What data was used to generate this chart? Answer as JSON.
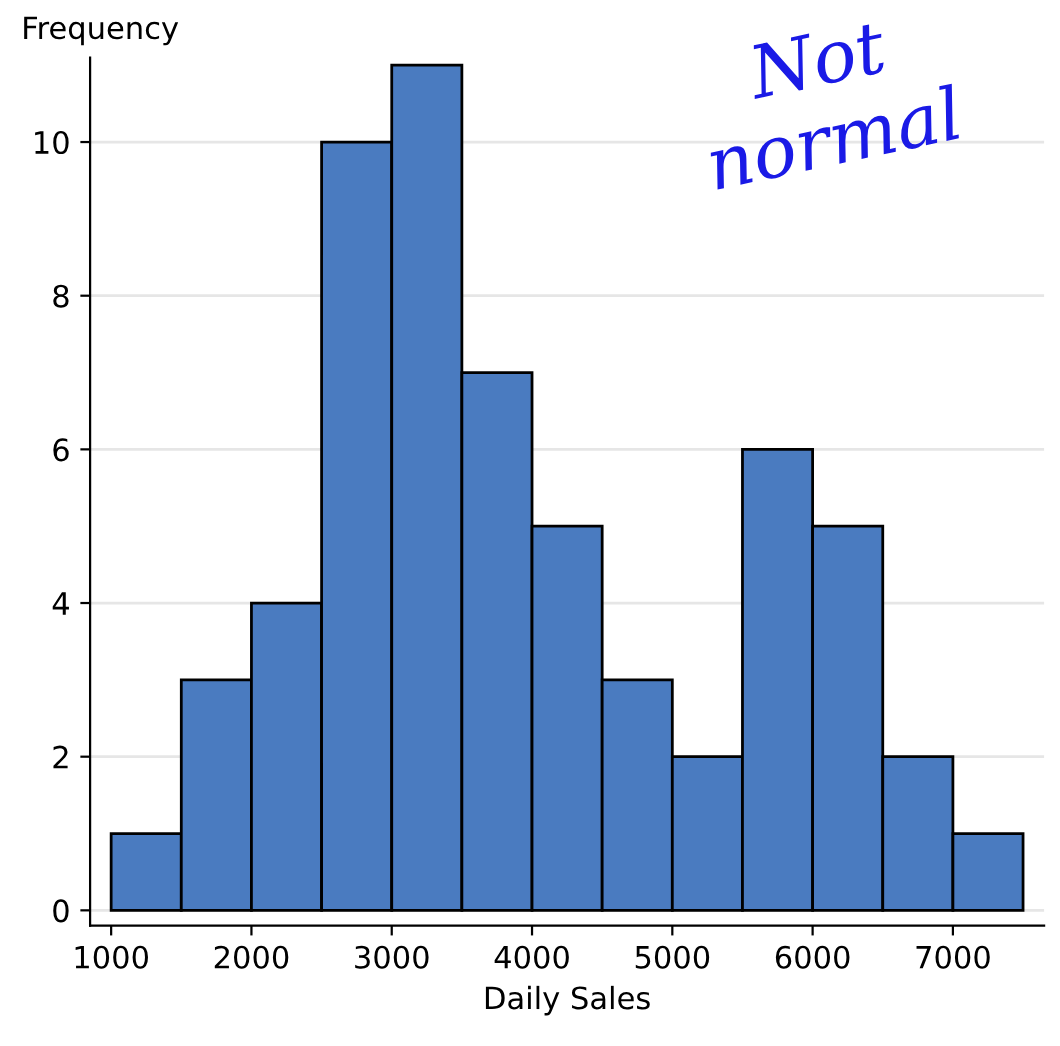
{
  "chart_data": {
    "type": "histogram",
    "xlabel": "Daily Sales",
    "ylabel": "Frequency",
    "bins": [
      1000,
      1500,
      2000,
      2500,
      3000,
      3500,
      4000,
      4500,
      5000,
      5500,
      6000,
      6500,
      7000,
      7500
    ],
    "values": [
      1,
      3,
      4,
      10,
      11,
      7,
      5,
      3,
      2,
      6,
      5,
      2,
      1
    ],
    "color": "#4a7bc0",
    "xlim": [
      850,
      7650
    ],
    "ylim": [
      -0.2,
      11.1
    ],
    "xticks": [
      1000,
      2000,
      3000,
      4000,
      5000,
      6000,
      7000
    ],
    "yticks": [
      0,
      2,
      4,
      6,
      8,
      10
    ],
    "grid": "y",
    "annotations": [
      "Not\nnormal"
    ]
  }
}
